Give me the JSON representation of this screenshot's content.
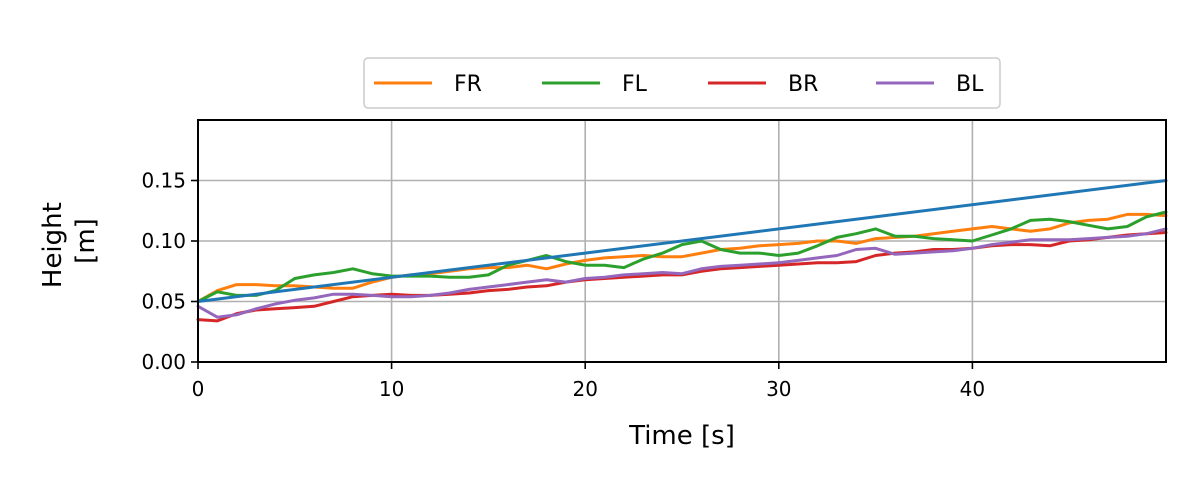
{
  "chart_data": {
    "type": "line",
    "xlabel": "Time [s]",
    "ylabel_lines": [
      "Height",
      "[m]"
    ],
    "xlim": [
      0,
      50
    ],
    "ylim": [
      0,
      0.2
    ],
    "xticks": [
      0,
      10,
      20,
      30,
      40
    ],
    "xtick_labels": [
      "0",
      "10",
      "20",
      "30",
      "40"
    ],
    "yticks": [
      0,
      0.05,
      0.1,
      0.15
    ],
    "ytick_labels": [
      "0.00",
      "0.05",
      "0.10",
      "0.15"
    ],
    "grid": true,
    "legend_position": "top-center, outside plot",
    "x": [
      0,
      1,
      2,
      3,
      4,
      5,
      6,
      7,
      8,
      9,
      10,
      11,
      12,
      13,
      14,
      15,
      16,
      17,
      18,
      19,
      20,
      21,
      22,
      23,
      24,
      25,
      26,
      27,
      28,
      29,
      30,
      31,
      32,
      33,
      34,
      35,
      36,
      37,
      38,
      39,
      40,
      41,
      42,
      43,
      44,
      45,
      46,
      47,
      48,
      49,
      50
    ],
    "series": [
      {
        "id": "reference",
        "color": "#1f77b4",
        "x": [
          0,
          50
        ],
        "values": [
          0.05,
          0.15
        ]
      },
      {
        "name": "FR",
        "color": "#ff7f0e",
        "values": [
          0.05,
          0.059,
          0.064,
          0.064,
          0.063,
          0.063,
          0.062,
          0.061,
          0.061,
          0.066,
          0.07,
          0.072,
          0.073,
          0.075,
          0.077,
          0.078,
          0.078,
          0.08,
          0.077,
          0.081,
          0.084,
          0.086,
          0.087,
          0.088,
          0.087,
          0.087,
          0.09,
          0.093,
          0.094,
          0.096,
          0.097,
          0.098,
          0.1,
          0.1,
          0.098,
          0.102,
          0.103,
          0.104,
          0.106,
          0.108,
          0.11,
          0.112,
          0.11,
          0.108,
          0.11,
          0.115,
          0.117,
          0.118,
          0.122,
          0.122,
          0.121
        ]
      },
      {
        "name": "FL",
        "color": "#2ca02c",
        "values": [
          0.05,
          0.058,
          0.055,
          0.055,
          0.059,
          0.069,
          0.072,
          0.074,
          0.077,
          0.073,
          0.071,
          0.071,
          0.071,
          0.07,
          0.07,
          0.072,
          0.08,
          0.084,
          0.088,
          0.083,
          0.08,
          0.08,
          0.078,
          0.085,
          0.09,
          0.097,
          0.1,
          0.093,
          0.09,
          0.09,
          0.088,
          0.09,
          0.096,
          0.103,
          0.106,
          0.11,
          0.104,
          0.104,
          0.102,
          0.101,
          0.1,
          0.105,
          0.11,
          0.117,
          0.118,
          0.116,
          0.113,
          0.11,
          0.112,
          0.12,
          0.124
        ]
      },
      {
        "name": "BR",
        "color": "#d62728",
        "values": [
          0.035,
          0.034,
          0.04,
          0.043,
          0.044,
          0.045,
          0.046,
          0.05,
          0.054,
          0.055,
          0.056,
          0.055,
          0.055,
          0.056,
          0.057,
          0.059,
          0.06,
          0.062,
          0.063,
          0.066,
          0.068,
          0.069,
          0.07,
          0.071,
          0.072,
          0.072,
          0.075,
          0.077,
          0.078,
          0.079,
          0.08,
          0.081,
          0.082,
          0.082,
          0.083,
          0.088,
          0.09,
          0.091,
          0.093,
          0.093,
          0.094,
          0.096,
          0.097,
          0.097,
          0.096,
          0.1,
          0.101,
          0.103,
          0.105,
          0.106,
          0.107
        ]
      },
      {
        "name": "BL",
        "color": "#9467bd",
        "values": [
          0.046,
          0.037,
          0.039,
          0.044,
          0.048,
          0.051,
          0.053,
          0.056,
          0.056,
          0.055,
          0.054,
          0.054,
          0.055,
          0.057,
          0.06,
          0.062,
          0.064,
          0.066,
          0.068,
          0.066,
          0.069,
          0.07,
          0.072,
          0.073,
          0.074,
          0.073,
          0.077,
          0.079,
          0.08,
          0.081,
          0.082,
          0.084,
          0.086,
          0.088,
          0.093,
          0.094,
          0.089,
          0.09,
          0.091,
          0.092,
          0.094,
          0.097,
          0.099,
          0.101,
          0.101,
          0.101,
          0.102,
          0.103,
          0.104,
          0.106,
          0.11
        ]
      }
    ],
    "legend": [
      "FR",
      "FL",
      "BR",
      "BL"
    ]
  }
}
